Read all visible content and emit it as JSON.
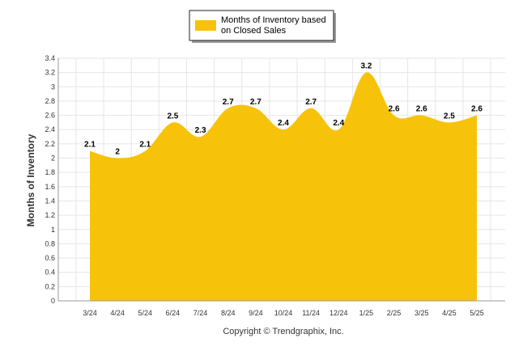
{
  "colors": {
    "fill": "#F7C30A",
    "grid": "#E6E6E6",
    "axis": "#999999"
  },
  "legend": {
    "line1": "Months of Inventory based",
    "line2": "on Closed Sales"
  },
  "copyright": "Copyright © Trendgraphix, Inc.",
  "chart_data": {
    "type": "area",
    "title": "",
    "xlabel": "",
    "ylabel": "Months of Inventory",
    "categories": [
      "3/24",
      "4/24",
      "5/24",
      "6/24",
      "7/24",
      "8/24",
      "9/24",
      "10/24",
      "11/24",
      "12/24",
      "1/25",
      "2/25",
      "3/25",
      "4/25",
      "5/25"
    ],
    "series": [
      {
        "name": "Months of Inventory based on Closed Sales",
        "values": [
          2.1,
          2,
          2.1,
          2.5,
          2.3,
          2.7,
          2.7,
          2.4,
          2.7,
          2.4,
          3.2,
          2.6,
          2.6,
          2.5,
          2.6
        ],
        "labels": [
          "2.1",
          "2",
          "2.1",
          "2.5",
          "2.3",
          "2.7",
          "2.7",
          "2.4",
          "2.7",
          "2.4",
          "3.2",
          "2.6",
          "2.6",
          "2.5",
          "2.6"
        ]
      }
    ],
    "ylim": [
      0,
      3.4
    ],
    "yticks": [
      "0",
      "0.2",
      "0.4",
      "0.6",
      "0.8",
      "1",
      "1.2",
      "1.4",
      "1.6",
      "1.8",
      "2",
      "2.2",
      "2.4",
      "2.6",
      "2.8",
      "3",
      "3.2",
      "3.4"
    ],
    "grid": true,
    "legend_position": "top-center"
  }
}
